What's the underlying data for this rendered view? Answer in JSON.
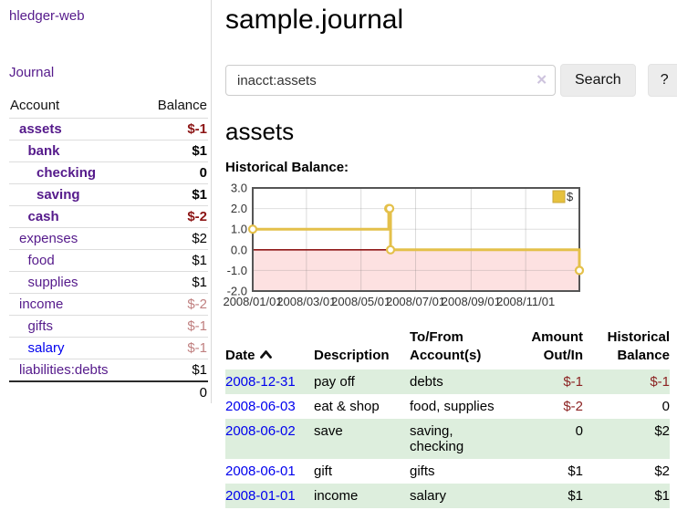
{
  "app": {
    "brand": "hledger-web",
    "nav_journal": "Journal"
  },
  "sidebar": {
    "header": {
      "account": "Account",
      "balance": "Balance"
    },
    "accounts": [
      {
        "name": "assets",
        "balance": "$-1",
        "indent": 0,
        "bold": true,
        "negative": true
      },
      {
        "name": "bank",
        "balance": "$1",
        "indent": 1,
        "bold": true,
        "negative": false
      },
      {
        "name": "checking",
        "balance": "0",
        "indent": 2,
        "bold": true,
        "negative": false
      },
      {
        "name": "saving",
        "balance": "$1",
        "indent": 2,
        "bold": true,
        "negative": false
      },
      {
        "name": "cash",
        "balance": "$-2",
        "indent": 1,
        "bold": true,
        "negative": true
      },
      {
        "name": "expenses",
        "balance": "$2",
        "indent": 0,
        "bold": false,
        "negative": false
      },
      {
        "name": "food",
        "balance": "$1",
        "indent": 1,
        "bold": false,
        "negative": false
      },
      {
        "name": "supplies",
        "balance": "$1",
        "indent": 1,
        "bold": false,
        "negative": false
      },
      {
        "name": "income",
        "balance": "$-2",
        "indent": 0,
        "bold": false,
        "negative": true
      },
      {
        "name": "gifts",
        "balance": "$-1",
        "indent": 1,
        "bold": false,
        "negative": true
      },
      {
        "name": "salary",
        "balance": "$-1",
        "indent": 1,
        "bold": false,
        "negative": true,
        "link_style": "unvisited"
      },
      {
        "name": "liabilities:debts",
        "balance": "$1",
        "indent": 0,
        "bold": false,
        "negative": false
      }
    ],
    "total": "0"
  },
  "main": {
    "title": "sample.journal",
    "search": {
      "value": "inacct:assets",
      "clear_icon": "✕",
      "button": "Search",
      "help_button": "?"
    },
    "account_heading": "assets",
    "chart_label": "Historical Balance:"
  },
  "chart_data": {
    "type": "line",
    "step": true,
    "title": "Historical Balance:",
    "series": [
      {
        "name": "$",
        "points": [
          {
            "date": "2008-01-01",
            "value": 1
          },
          {
            "date": "2008-06-01",
            "value": 2
          },
          {
            "date": "2008-06-02",
            "value": 2
          },
          {
            "date": "2008-06-03",
            "value": 0
          },
          {
            "date": "2008-12-31",
            "value": -1
          }
        ]
      }
    ],
    "x_range": [
      "2008-01-01",
      "2008-12-31"
    ],
    "x_ticks": [
      "2008/01/01",
      "2008/03/01",
      "2008/05/01",
      "2008/07/01",
      "2008/09/01",
      "2008/11/01"
    ],
    "y_ticks": [
      "3.0",
      "2.0",
      "1.0",
      "0.0",
      "-1.0",
      "-2.0"
    ],
    "ylim": [
      -2,
      3
    ],
    "grid": true,
    "legend": {
      "label": "$",
      "position": "top-right"
    },
    "colors": {
      "line": "#e4c04a",
      "marker_fill": "#ffffff",
      "negative_area": "#fde1e1",
      "zero_line": "#8f1717",
      "border": "#555555",
      "legend_swatch": "#e6c13d",
      "legend_swatch_border": "#c9a73a"
    }
  },
  "register": {
    "headers": {
      "date": "Date",
      "description": "Description",
      "accounts": "To/From Account(s)",
      "amount": "Amount Out/In",
      "balance": "Historical Balance"
    },
    "rows": [
      {
        "date": "2008-12-31",
        "description": "pay off",
        "accounts": "debts",
        "amount": "$-1",
        "balance": "$-1",
        "amount_negative": true,
        "balance_negative": true,
        "highlight": true
      },
      {
        "date": "2008-06-03",
        "description": "eat & shop",
        "accounts": "food, supplies",
        "amount": "$-2",
        "balance": "0",
        "amount_negative": true,
        "balance_negative": false,
        "highlight": false
      },
      {
        "date": "2008-06-02",
        "description": "save",
        "accounts": "saving, checking",
        "amount": "0",
        "balance": "$2",
        "amount_negative": false,
        "balance_negative": false,
        "highlight": true
      },
      {
        "date": "2008-06-01",
        "description": "gift",
        "accounts": "gifts",
        "amount": "$1",
        "balance": "$2",
        "amount_negative": false,
        "balance_negative": false,
        "highlight": false
      },
      {
        "date": "2008-01-01",
        "description": "income",
        "accounts": "salary",
        "amount": "$1",
        "balance": "$1",
        "amount_negative": false,
        "balance_negative": false,
        "highlight": true
      }
    ]
  }
}
